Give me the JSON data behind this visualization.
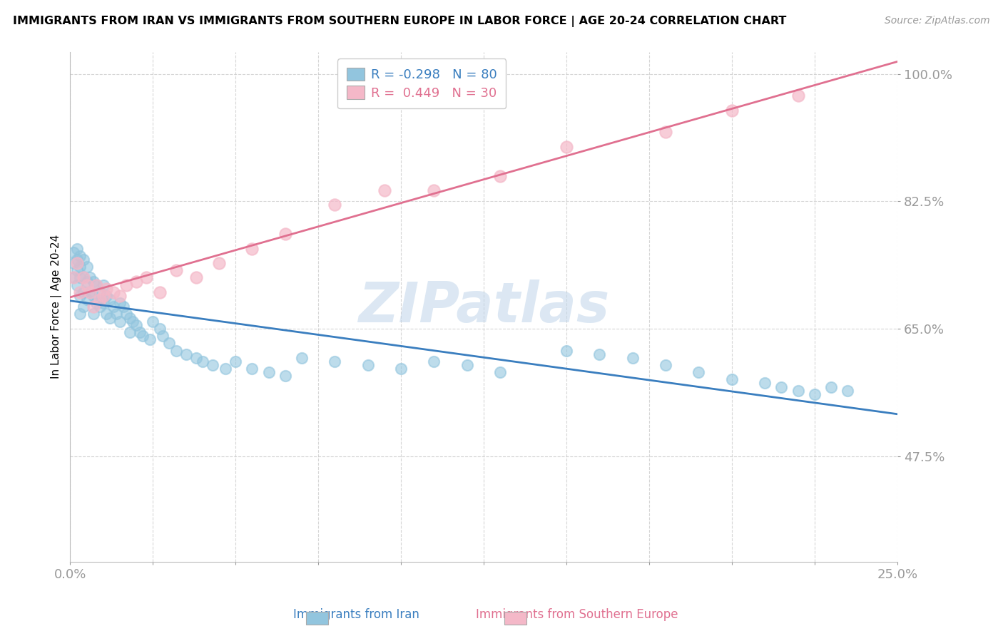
{
  "title": "IMMIGRANTS FROM IRAN VS IMMIGRANTS FROM SOUTHERN EUROPE IN LABOR FORCE | AGE 20-24 CORRELATION CHART",
  "source": "Source: ZipAtlas.com",
  "ylabel": "In Labor Force | Age 20-24",
  "xlim": [
    0.0,
    0.25
  ],
  "ylim": [
    0.33,
    1.03
  ],
  "yticks": [
    0.475,
    0.65,
    0.825,
    1.0
  ],
  "ytick_labels": [
    "47.5%",
    "65.0%",
    "82.5%",
    "100.0%"
  ],
  "xticks": [
    0.0,
    0.025,
    0.05,
    0.075,
    0.1,
    0.125,
    0.15,
    0.175,
    0.2,
    0.225,
    0.25
  ],
  "xtick_labels": [
    "0.0%",
    "",
    "",
    "",
    "",
    "",
    "",
    "",
    "",
    "",
    "25.0%"
  ],
  "iran_color": "#92c5de",
  "iran_line_color": "#3a7ebf",
  "southern_europe_color": "#f4b8c8",
  "southern_europe_line_color": "#e07090",
  "iran_R": -0.298,
  "iran_N": 80,
  "southern_europe_R": 0.449,
  "southern_europe_N": 30,
  "iran_scatter_x": [
    0.001,
    0.001,
    0.001,
    0.002,
    0.002,
    0.002,
    0.002,
    0.003,
    0.003,
    0.003,
    0.003,
    0.003,
    0.004,
    0.004,
    0.004,
    0.004,
    0.005,
    0.005,
    0.005,
    0.006,
    0.006,
    0.007,
    0.007,
    0.007,
    0.008,
    0.008,
    0.009,
    0.009,
    0.01,
    0.01,
    0.011,
    0.011,
    0.012,
    0.012,
    0.013,
    0.014,
    0.015,
    0.015,
    0.016,
    0.017,
    0.018,
    0.018,
    0.019,
    0.02,
    0.021,
    0.022,
    0.024,
    0.025,
    0.027,
    0.028,
    0.03,
    0.032,
    0.035,
    0.038,
    0.04,
    0.043,
    0.047,
    0.05,
    0.055,
    0.06,
    0.065,
    0.07,
    0.08,
    0.09,
    0.1,
    0.11,
    0.12,
    0.13,
    0.15,
    0.16,
    0.17,
    0.18,
    0.19,
    0.2,
    0.21,
    0.215,
    0.22,
    0.225,
    0.23,
    0.235
  ],
  "iran_scatter_y": [
    0.755,
    0.74,
    0.72,
    0.76,
    0.745,
    0.73,
    0.71,
    0.75,
    0.735,
    0.72,
    0.695,
    0.67,
    0.745,
    0.72,
    0.7,
    0.68,
    0.735,
    0.715,
    0.69,
    0.72,
    0.7,
    0.715,
    0.695,
    0.67,
    0.71,
    0.685,
    0.7,
    0.68,
    0.71,
    0.685,
    0.695,
    0.67,
    0.69,
    0.665,
    0.68,
    0.67,
    0.685,
    0.66,
    0.68,
    0.67,
    0.665,
    0.645,
    0.66,
    0.655,
    0.645,
    0.64,
    0.635,
    0.66,
    0.65,
    0.64,
    0.63,
    0.62,
    0.615,
    0.61,
    0.605,
    0.6,
    0.595,
    0.605,
    0.595,
    0.59,
    0.585,
    0.61,
    0.605,
    0.6,
    0.595,
    0.605,
    0.6,
    0.59,
    0.62,
    0.615,
    0.61,
    0.6,
    0.59,
    0.58,
    0.575,
    0.57,
    0.565,
    0.56,
    0.57,
    0.565
  ],
  "se_scatter_x": [
    0.001,
    0.002,
    0.003,
    0.004,
    0.005,
    0.006,
    0.007,
    0.008,
    0.009,
    0.01,
    0.011,
    0.013,
    0.015,
    0.017,
    0.02,
    0.023,
    0.027,
    0.032,
    0.038,
    0.045,
    0.055,
    0.065,
    0.08,
    0.095,
    0.11,
    0.13,
    0.15,
    0.18,
    0.2,
    0.22
  ],
  "se_scatter_y": [
    0.72,
    0.74,
    0.7,
    0.72,
    0.71,
    0.7,
    0.68,
    0.71,
    0.69,
    0.695,
    0.705,
    0.7,
    0.695,
    0.71,
    0.715,
    0.72,
    0.7,
    0.73,
    0.72,
    0.74,
    0.76,
    0.78,
    0.82,
    0.84,
    0.84,
    0.86,
    0.9,
    0.92,
    0.95,
    0.97
  ],
  "background_color": "#ffffff",
  "grid_color": "#cccccc",
  "tick_color": "#4472c4",
  "watermark": "ZIPatlas"
}
